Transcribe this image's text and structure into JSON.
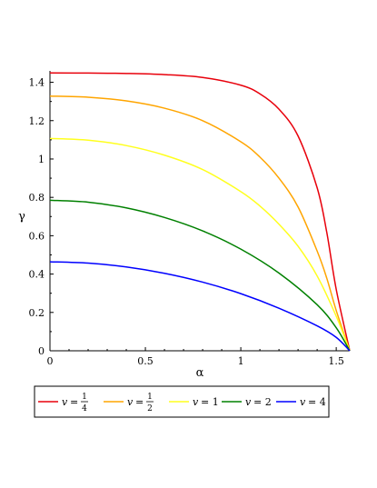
{
  "chart_data": {
    "type": "line",
    "xlabel": "α",
    "ylabel": "γ",
    "xlim": [
      0,
      1.5708
    ],
    "ylim": [
      0,
      1.45
    ],
    "grid": false,
    "legend_position": "bottom",
    "x_ticks": [
      {
        "value": 0,
        "label": "0"
      },
      {
        "value": 0.5,
        "label": "0.5"
      },
      {
        "value": 1,
        "label": "1"
      },
      {
        "value": 1.5,
        "label": "1.5"
      }
    ],
    "y_ticks": [
      {
        "value": 0,
        "label": "0"
      },
      {
        "value": 0.2,
        "label": "0.2"
      },
      {
        "value": 0.4,
        "label": "0.4"
      },
      {
        "value": 0.6,
        "label": "0.6"
      },
      {
        "value": 0.8,
        "label": "0.8"
      },
      {
        "value": 1,
        "label": "1"
      },
      {
        "value": 1.2,
        "label": "1.2"
      },
      {
        "value": 1.4,
        "label": "1.4"
      }
    ],
    "series": [
      {
        "name": "v = 1/4",
        "legend": {
          "var": "v",
          "eq": "=",
          "num": "1",
          "den": "4"
        },
        "color": "#e8000b",
        "x": [
          0,
          0.2,
          0.4,
          0.6,
          0.8,
          1.0,
          1.1,
          1.2,
          1.3,
          1.4,
          1.45,
          1.5,
          1.5708
        ],
        "y": [
          1.449,
          1.448,
          1.446,
          1.44,
          1.425,
          1.385,
          1.34,
          1.26,
          1.12,
          0.85,
          0.62,
          0.32,
          0
        ]
      },
      {
        "name": "v = 1/2",
        "legend": {
          "var": "v",
          "eq": "=",
          "num": "1",
          "den": "2"
        },
        "color": "#ffa500",
        "x": [
          0,
          0.2,
          0.4,
          0.6,
          0.8,
          1.0,
          1.1,
          1.2,
          1.3,
          1.4,
          1.45,
          1.5,
          1.5708
        ],
        "y": [
          1.328,
          1.322,
          1.303,
          1.265,
          1.2,
          1.09,
          1.01,
          0.9,
          0.75,
          0.52,
          0.38,
          0.21,
          0
        ]
      },
      {
        "name": "v = 1",
        "legend": {
          "var": "v",
          "eq": "= 1",
          "num": "",
          "den": ""
        },
        "color": "#ffff1e",
        "x": [
          0,
          0.2,
          0.4,
          0.6,
          0.8,
          1.0,
          1.1,
          1.2,
          1.3,
          1.4,
          1.5,
          1.5708
        ],
        "y": [
          1.107,
          1.098,
          1.07,
          1.02,
          0.945,
          0.83,
          0.755,
          0.66,
          0.545,
          0.39,
          0.18,
          0
        ]
      },
      {
        "name": "v = 2",
        "legend": {
          "var": "v",
          "eq": "= 2",
          "num": "",
          "den": ""
        },
        "color": "#008000",
        "x": [
          0,
          0.2,
          0.4,
          0.6,
          0.8,
          1.0,
          1.2,
          1.4,
          1.5,
          1.5708
        ],
        "y": [
          0.785,
          0.775,
          0.745,
          0.695,
          0.625,
          0.53,
          0.405,
          0.24,
          0.12,
          0
        ]
      },
      {
        "name": "v = 4",
        "legend": {
          "var": "v",
          "eq": "= 4",
          "num": "",
          "den": ""
        },
        "color": "#0000ff",
        "x": [
          0,
          0.2,
          0.4,
          0.6,
          0.8,
          1.0,
          1.2,
          1.4,
          1.5,
          1.5708
        ],
        "y": [
          0.464,
          0.457,
          0.437,
          0.404,
          0.358,
          0.298,
          0.222,
          0.13,
          0.07,
          0
        ]
      }
    ]
  }
}
